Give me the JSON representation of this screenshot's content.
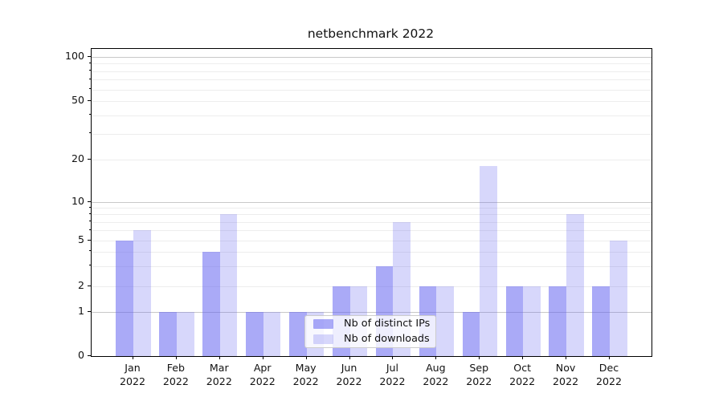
{
  "title": "netbenchmark 2022",
  "chart_data": {
    "type": "bar",
    "title": "netbenchmark 2022",
    "categories": [
      {
        "month": "Jan",
        "year": "2022"
      },
      {
        "month": "Feb",
        "year": "2022"
      },
      {
        "month": "Mar",
        "year": "2022"
      },
      {
        "month": "Apr",
        "year": "2022"
      },
      {
        "month": "May",
        "year": "2022"
      },
      {
        "month": "Jun",
        "year": "2022"
      },
      {
        "month": "Jul",
        "year": "2022"
      },
      {
        "month": "Aug",
        "year": "2022"
      },
      {
        "month": "Sep",
        "year": "2022"
      },
      {
        "month": "Oct",
        "year": "2022"
      },
      {
        "month": "Nov",
        "year": "2022"
      },
      {
        "month": "Dec",
        "year": "2022"
      }
    ],
    "series": [
      {
        "name": "Nb of distinct IPs",
        "color": "#a9a9f6",
        "rgba": "rgba(100,100,240,0.55)",
        "values": [
          5,
          1,
          4,
          1,
          1,
          2,
          3,
          2,
          1,
          2,
          2,
          2
        ]
      },
      {
        "name": "Nb of downloads",
        "color": "#d8d8f8",
        "rgba": "rgba(100,100,240,0.26)",
        "values": [
          6,
          1,
          8,
          1,
          1,
          2,
          7,
          2,
          18,
          2,
          8,
          5
        ]
      }
    ],
    "xlabel": "",
    "ylabel": "",
    "yscale": "symlog",
    "ylim": [
      0,
      100
    ],
    "y_tick_labels": [
      100,
      50,
      20,
      10,
      5,
      2,
      1,
      0
    ],
    "y_major_gridlines": [
      1,
      10,
      100
    ],
    "y_minor_gridlines": [
      2,
      3,
      4,
      5,
      6,
      7,
      8,
      9,
      20,
      30,
      40,
      50,
      60,
      70,
      80,
      90
    ],
    "grid": true,
    "legend_position": "lower center"
  },
  "colors": {
    "background": "#ffffff",
    "spine": "#000000",
    "grid_major": "#c8c8c8",
    "grid_minor": "#ededed",
    "text": "#111111",
    "legend_border": "#cccccc",
    "legend_background": "rgba(255,255,255,0.8)"
  }
}
